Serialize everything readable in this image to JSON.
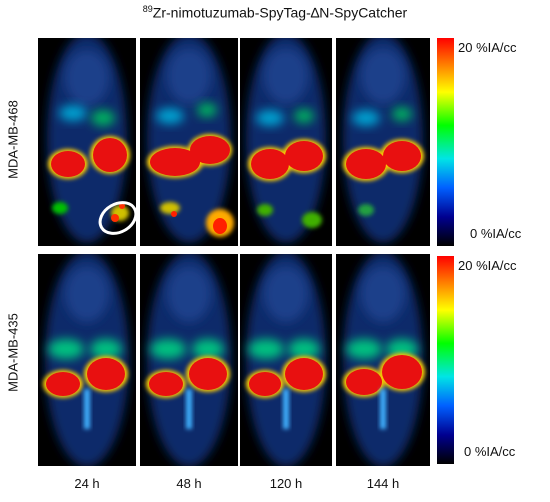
{
  "title": {
    "superscript": "89",
    "text": "Zr-nimotuzumab-SpyTag-∆N-SpyCatcher"
  },
  "rows": [
    {
      "label": "MDA-MB-468",
      "colorbar_max": "20 %IA/cc",
      "colorbar_min": "0 %IA/cc"
    },
    {
      "label": "MDA-MB-435",
      "colorbar_max": "20 %IA/cc",
      "colorbar_min": "0 %IA/cc"
    }
  ],
  "timepoints": [
    "24 h",
    "48 h",
    "120 h",
    "144 h"
  ],
  "colormap": [
    "#000000",
    "#000090",
    "#0060ff",
    "#00e5e5",
    "#00ff00",
    "#ffff00",
    "#ff8a00",
    "#ff0000"
  ],
  "highlight_color": "#ffffff"
}
